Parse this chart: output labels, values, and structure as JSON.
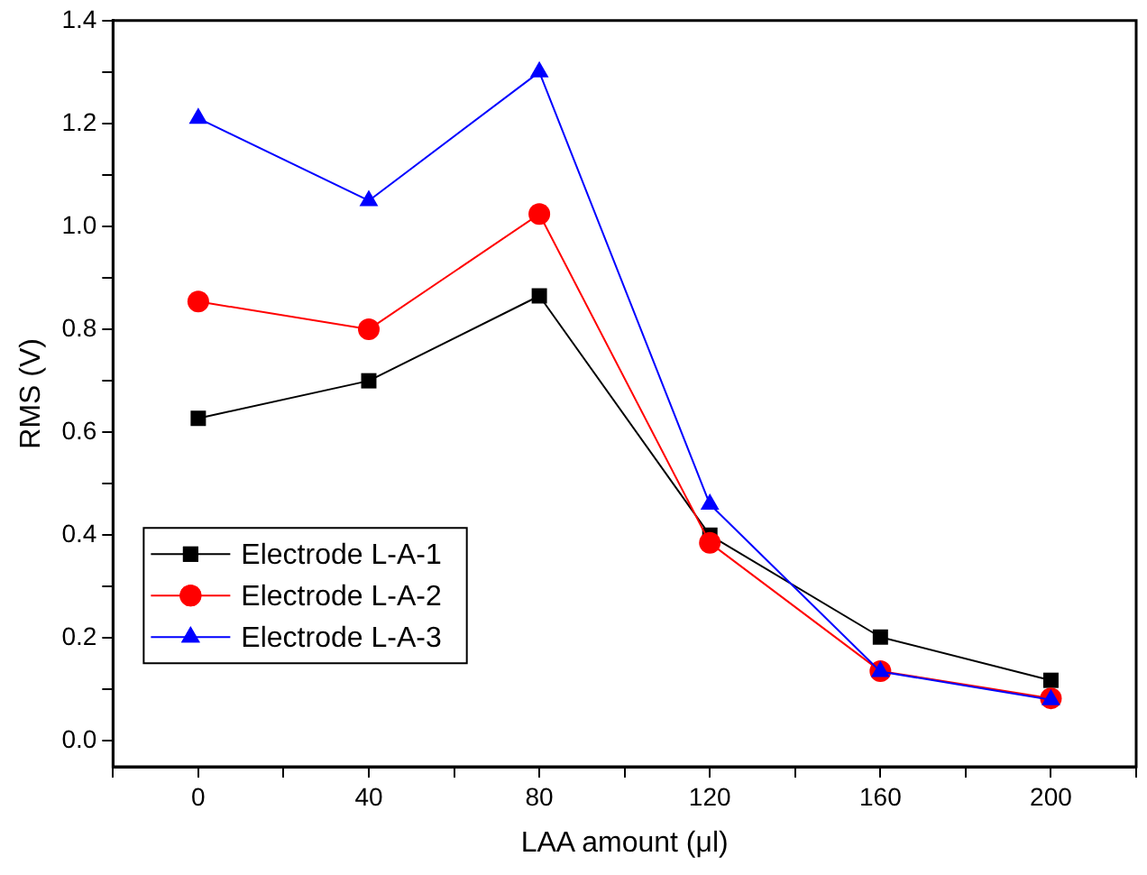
{
  "chart_data": {
    "type": "line",
    "xlabel": "LAA amount (μl)",
    "ylabel": "RMS (V)",
    "x": [
      0,
      40,
      80,
      120,
      160,
      200
    ],
    "xlim": [
      -20,
      220
    ],
    "xticks": [
      {
        "value": -20,
        "label": null
      },
      0,
      {
        "value": 20,
        "label": null
      },
      40,
      {
        "value": 60,
        "label": null
      },
      80,
      {
        "value": 100,
        "label": null
      },
      120,
      {
        "value": 140,
        "label": null
      },
      160,
      {
        "value": 180,
        "label": null
      },
      200,
      {
        "value": 220,
        "label": null
      }
    ],
    "ylim": [
      -0.05,
      1.4
    ],
    "yticks": [
      {
        "value": 0,
        "label": "0.0"
      },
      {
        "value": 0.1,
        "label": null
      },
      {
        "value": 0.2,
        "label": "0.2"
      },
      {
        "value": 0.3,
        "label": null
      },
      {
        "value": 0.4,
        "label": "0.4"
      },
      {
        "value": 0.5,
        "label": null
      },
      {
        "value": 0.6,
        "label": "0.6"
      },
      {
        "value": 0.7,
        "label": null
      },
      {
        "value": 0.8,
        "label": "0.8"
      },
      {
        "value": 0.9,
        "label": null
      },
      {
        "value": 1.0,
        "label": "1.0"
      },
      {
        "value": 1.1,
        "label": null
      },
      {
        "value": 1.2,
        "label": "1.2"
      },
      {
        "value": 1.3,
        "label": null
      },
      {
        "value": 1.4,
        "label": "1.4"
      }
    ],
    "series": [
      {
        "name": "Electrode L-A-1",
        "color": "#000000",
        "marker": "square",
        "values": [
          0.627,
          0.7,
          0.865,
          0.4,
          0.202,
          0.118
        ]
      },
      {
        "name": "Electrode L-A-2",
        "color": "#ff0000",
        "marker": "circle",
        "values": [
          0.854,
          0.8,
          1.024,
          0.385,
          0.136,
          0.083
        ]
      },
      {
        "name": "Electrode L-A-3",
        "color": "#0000ff",
        "marker": "triangle",
        "values": [
          1.21,
          1.05,
          1.3,
          0.46,
          0.135,
          0.08
        ]
      }
    ],
    "legend": "left",
    "grid": false
  }
}
